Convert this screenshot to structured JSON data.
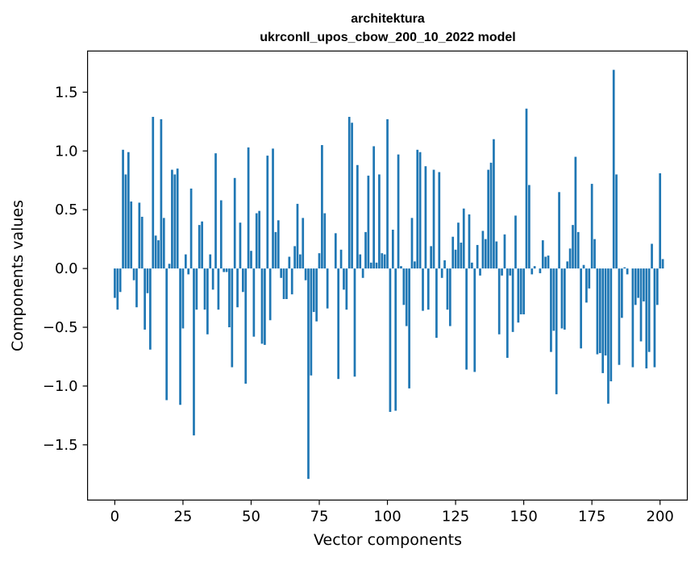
{
  "chart_data": {
    "type": "bar",
    "title": "architektura",
    "subtitle": "ukrconll_upos_cbow_200_10_2022 model",
    "xlabel": "Vector components",
    "ylabel": "Components values",
    "xlim": [
      -10,
      210
    ],
    "ylim": [
      -1.97,
      1.85
    ],
    "xticks": [
      0,
      25,
      50,
      75,
      100,
      125,
      150,
      175,
      200
    ],
    "xtick_labels": [
      "0",
      "25",
      "50",
      "75",
      "100",
      "125",
      "150",
      "175",
      "200"
    ],
    "yticks": [
      -1.5,
      -1.0,
      -0.5,
      0.0,
      0.5,
      1.0,
      1.5
    ],
    "ytick_labels": [
      "−1.5",
      "−1.0",
      "−0.5",
      "0.0",
      "0.5",
      "1.0",
      "1.5"
    ],
    "grid": false,
    "bar_color": "#1f77b4",
    "values": [
      -0.25,
      -0.35,
      -0.2,
      1.01,
      0.8,
      0.99,
      0.57,
      -0.1,
      -0.33,
      0.56,
      0.44,
      -0.52,
      -0.21,
      -0.69,
      1.29,
      0.28,
      0.24,
      1.27,
      0.43,
      -1.12,
      0.04,
      0.84,
      0.8,
      0.85,
      -1.16,
      -0.51,
      0.12,
      -0.05,
      0.68,
      -1.42,
      -0.35,
      0.37,
      0.4,
      -0.35,
      -0.56,
      0.12,
      -0.18,
      0.98,
      -0.35,
      0.58,
      -0.03,
      -0.03,
      -0.5,
      -0.84,
      0.77,
      -0.33,
      0.39,
      -0.2,
      -0.98,
      1.03,
      0.15,
      -0.58,
      0.47,
      0.49,
      -0.64,
      -0.65,
      0.96,
      -0.44,
      1.02,
      0.31,
      0.41,
      -0.08,
      -0.26,
      -0.26,
      0.1,
      -0.22,
      0.19,
      0.55,
      0.12,
      0.43,
      -0.1,
      -1.79,
      -0.91,
      -0.37,
      -0.45,
      0.13,
      1.05,
      0.47,
      -0.34,
      0.0,
      0.0,
      0.3,
      -0.94,
      0.16,
      -0.18,
      -0.35,
      1.29,
      1.24,
      -0.92,
      0.88,
      0.12,
      -0.08,
      0.31,
      0.79,
      0.05,
      1.04,
      0.05,
      0.8,
      0.13,
      0.12,
      1.27,
      -1.22,
      0.33,
      -1.21,
      0.97,
      0.02,
      -0.31,
      -0.49,
      -1.02,
      0.43,
      0.06,
      1.01,
      0.99,
      -0.36,
      0.87,
      -0.35,
      0.19,
      0.84,
      -0.59,
      0.82,
      -0.08,
      0.07,
      -0.35,
      -0.49,
      0.27,
      0.16,
      0.39,
      0.22,
      0.51,
      -0.86,
      0.46,
      0.05,
      -0.88,
      0.2,
      -0.06,
      0.32,
      0.25,
      0.84,
      0.9,
      1.1,
      0.23,
      -0.56,
      -0.06,
      0.29,
      -0.76,
      -0.06,
      -0.54,
      0.45,
      -0.46,
      -0.39,
      -0.39,
      1.36,
      0.71,
      -0.05,
      0.02,
      0.0,
      -0.04,
      0.24,
      0.1,
      0.11,
      -0.71,
      -0.53,
      -1.07,
      0.65,
      -0.51,
      -0.52,
      0.06,
      0.17,
      0.37,
      0.95,
      0.31,
      -0.68,
      0.03,
      -0.29,
      -0.17,
      0.72,
      0.25,
      -0.73,
      -0.72,
      -0.89,
      -0.74,
      -1.15,
      -0.96,
      1.69,
      0.8,
      -0.82,
      -0.42,
      0.01,
      -0.05,
      0.0,
      -0.84,
      -0.31,
      -0.25,
      -0.62,
      -0.28,
      -0.85,
      -0.71,
      0.21,
      -0.84,
      -0.31,
      0.81,
      0.08
    ]
  }
}
